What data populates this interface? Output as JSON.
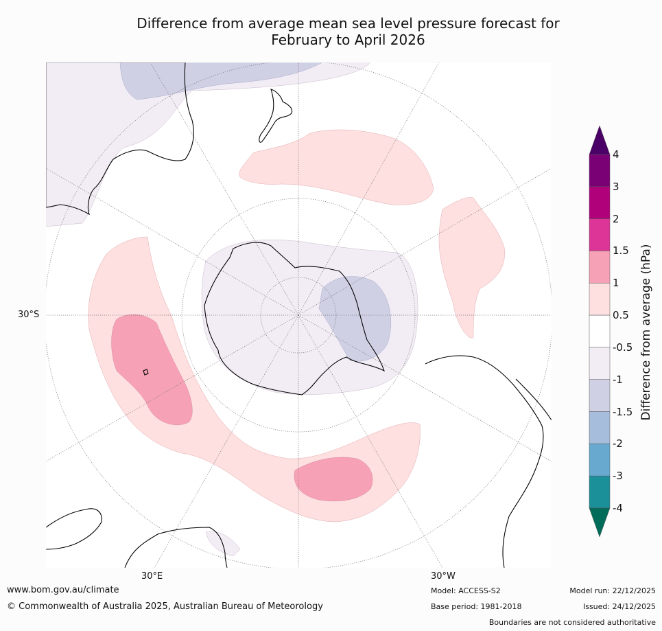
{
  "title": {
    "line1": "Difference from average mean sea level pressure forecast for",
    "line2": "February to April 2026"
  },
  "map": {
    "projection": "South polar stereographic",
    "labels": {
      "lat_30s": "30°S",
      "lon_30e": "30°E",
      "lon_30w": "30°W"
    }
  },
  "colorbar": {
    "title": "Difference from average (hPa)",
    "ticks": [
      "4",
      "3",
      "2",
      "1.5",
      "1",
      "0.5",
      "-0.5",
      "-1",
      "-1.5",
      "-2",
      "-3",
      "-4"
    ],
    "bins": [
      {
        "range": "> 4",
        "color": "#4a0066"
      },
      {
        "range": "3 to 4",
        "color": "#7a0076"
      },
      {
        "range": "2 to 3",
        "color": "#b0007a"
      },
      {
        "range": "1.5 to 2",
        "color": "#dd3497"
      },
      {
        "range": "1 to 1.5",
        "color": "#f7a1b6"
      },
      {
        "range": "0.5 to 1",
        "color": "#fde0df"
      },
      {
        "range": "-0.5 to 0.5",
        "color": "#ffffff"
      },
      {
        "range": "-1 to -0.5",
        "color": "#f2ecf5"
      },
      {
        "range": "-1.5 to -1",
        "color": "#cfd0e4"
      },
      {
        "range": "-2 to -1.5",
        "color": "#a6bddb"
      },
      {
        "range": "-3 to -2",
        "color": "#67a9cf"
      },
      {
        "range": "-4 to -3",
        "color": "#1c9099"
      },
      {
        "range": "< -4",
        "color": "#016c59"
      }
    ]
  },
  "footer": {
    "website": "www.bom.gov.au/climate",
    "copyright": "© Commonwealth of Australia 2025, Australian Bureau of Meteorology",
    "model": "Model: ACCESS-S2",
    "base_period": "Base period: 1981-2018",
    "model_run": "Model run: 22/12/2025",
    "issued": "Issued: 24/12/2025",
    "disclaimer": "Boundaries are not considered authoritative"
  }
}
